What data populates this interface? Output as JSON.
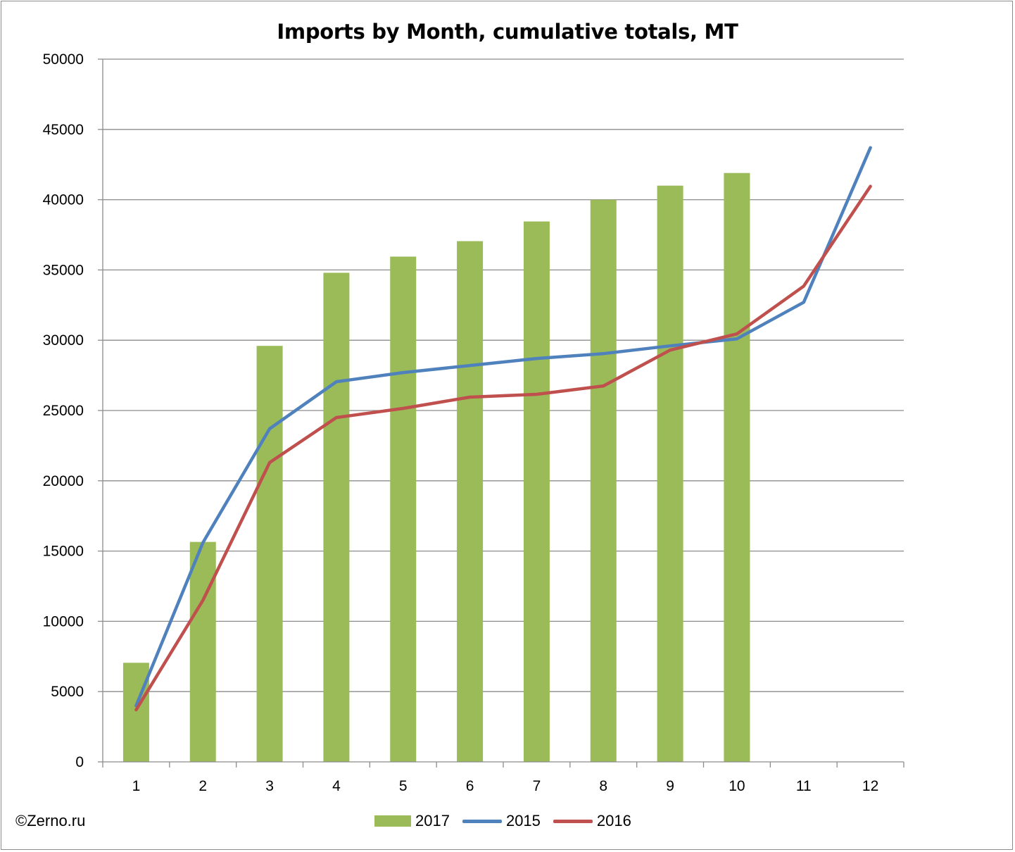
{
  "chart_data": {
    "type": "bar",
    "title": "Imports by Month, cumulative totals, MT",
    "xlabel": "",
    "ylabel": "",
    "ylim": [
      0,
      50000
    ],
    "ytick_step": 5000,
    "y_ticks": [
      "0",
      "5000",
      "10000",
      "15000",
      "20000",
      "25000",
      "30000",
      "35000",
      "40000",
      "45000",
      "50000"
    ],
    "categories": [
      "1",
      "2",
      "3",
      "4",
      "5",
      "6",
      "7",
      "8",
      "9",
      "10",
      "11",
      "12"
    ],
    "grid": true,
    "legend_position": "bottom",
    "series": [
      {
        "name": "2017",
        "kind": "bar",
        "color": "#9bbb59",
        "values": [
          7050,
          15650,
          29600,
          34800,
          35950,
          37050,
          38450,
          40000,
          41000,
          41900,
          null,
          null
        ]
      },
      {
        "name": "2015",
        "kind": "line",
        "color": "#4f81bd",
        "values": [
          4000,
          15600,
          23700,
          27050,
          27700,
          28200,
          28700,
          29050,
          29600,
          30100,
          32700,
          43700
        ]
      },
      {
        "name": "2016",
        "kind": "line",
        "color": "#c0504d",
        "values": [
          3700,
          11500,
          21300,
          24500,
          25150,
          25950,
          26150,
          26750,
          29300,
          30450,
          33850,
          40950
        ]
      }
    ]
  },
  "footer": {
    "copyright": "©Zerno.ru"
  },
  "legend": {
    "items": [
      {
        "label": "2017",
        "color": "#9bbb59",
        "kind": "bar"
      },
      {
        "label": "2015",
        "color": "#4f81bd",
        "kind": "line"
      },
      {
        "label": "2016",
        "color": "#c0504d",
        "kind": "line"
      }
    ]
  }
}
